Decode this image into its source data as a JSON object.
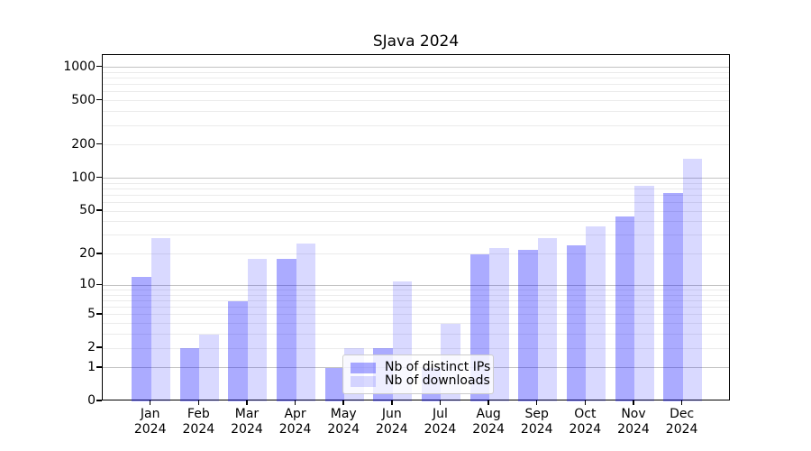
{
  "chart_data": {
    "type": "bar",
    "title": "SJava 2024",
    "categories": [
      "Jan",
      "Feb",
      "Mar",
      "Apr",
      "May",
      "Jun",
      "Jul",
      "Aug",
      "Sep",
      "Oct",
      "Nov",
      "Dec"
    ],
    "year": "2024",
    "series": [
      {
        "name": "Nb of distinct IPs",
        "color": "#0000FF54",
        "values": [
          12,
          2,
          7,
          18,
          1,
          2,
          1,
          20,
          22,
          24,
          45,
          74
        ]
      },
      {
        "name": "Nb of downloads",
        "color": "#0000FF26",
        "values": [
          28,
          3,
          18,
          25,
          2,
          11,
          4,
          23,
          28,
          36,
          85,
          150
        ]
      }
    ],
    "xlabel": "",
    "ylabel": "",
    "yscale": "log1p",
    "ylim": [
      0,
      1290
    ],
    "yticks": [
      0,
      1,
      2,
      5,
      10,
      20,
      50,
      100,
      200,
      500,
      1000
    ],
    "minor_gridlines": [
      2,
      3,
      4,
      5,
      6,
      7,
      8,
      9,
      20,
      30,
      40,
      50,
      60,
      70,
      80,
      90,
      200,
      300,
      400,
      500,
      600,
      700,
      800,
      900
    ],
    "major_gridlines": [
      1,
      10,
      100,
      1000
    ],
    "grid": true,
    "legend_position": "lower center",
    "gridline_major_color": "#c3c3c3",
    "gridline_minor_color": "#ebebeb"
  }
}
